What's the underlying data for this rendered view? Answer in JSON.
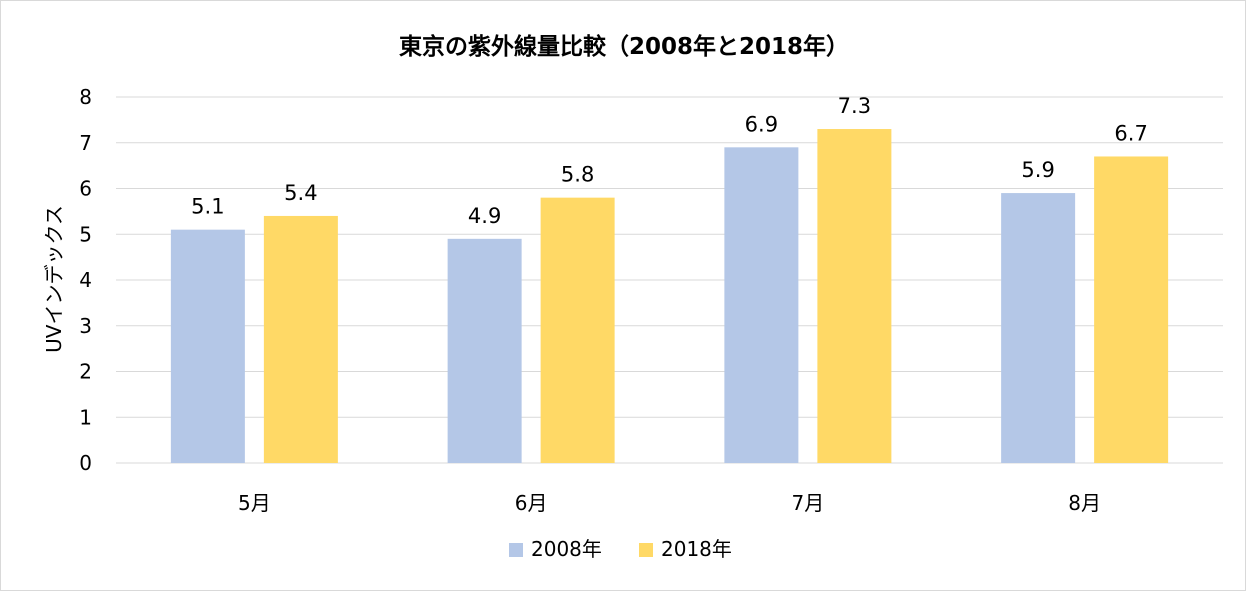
{
  "chart_data": {
    "type": "bar",
    "title": "東京の紫外線量比較（2008年と2018年）",
    "xlabel": "",
    "ylabel": "UVインデックス",
    "categories": [
      "5月",
      "6月",
      "7月",
      "8月"
    ],
    "series": [
      {
        "name": "2008年",
        "values": [
          5.1,
          4.9,
          6.9,
          5.9
        ],
        "color": "#b4c7e7"
      },
      {
        "name": "2018年",
        "values": [
          5.4,
          5.8,
          7.3,
          6.7
        ],
        "color": "#ffd966"
      }
    ],
    "ylim": [
      0,
      8
    ],
    "yticks": [
      0,
      1,
      2,
      3,
      4,
      5,
      6,
      7,
      8
    ],
    "grid": true,
    "legend_position": "bottom",
    "data_labels": true,
    "gridline_color": "#d9d9d9"
  }
}
